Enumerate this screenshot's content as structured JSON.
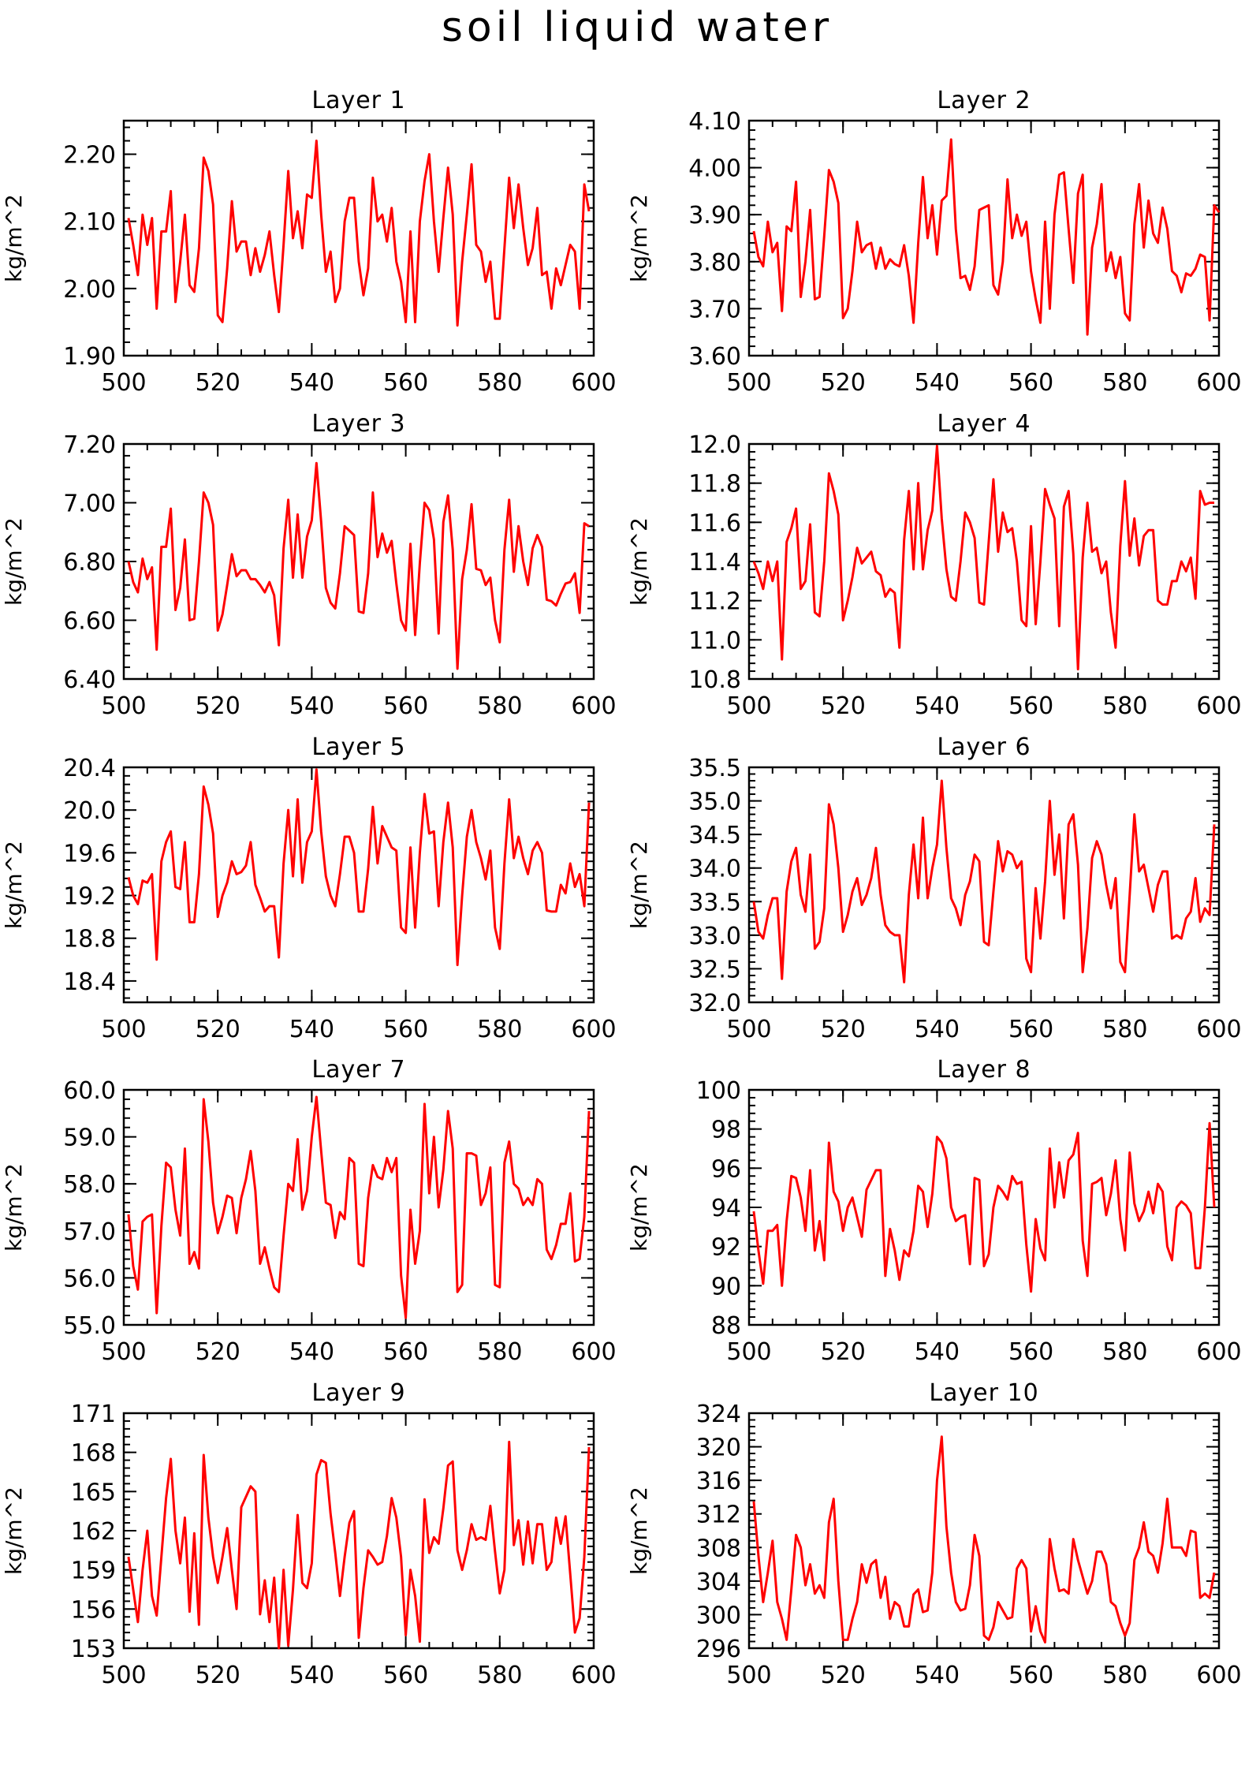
{
  "figure": {
    "title": "soil liquid water",
    "line_color": "#ff0000"
  },
  "chart_data": [
    {
      "type": "line",
      "title": "Layer 1",
      "xlabel": "",
      "ylabel": "kg/m^2",
      "xlim": [
        500,
        600
      ],
      "ylim": [
        1.9,
        2.25
      ],
      "xticks": [
        "500",
        "520",
        "540",
        "560",
        "580",
        "600"
      ],
      "yticks": [
        "1.90",
        "2.00",
        "2.10",
        "2.20"
      ],
      "x0": 501,
      "dx": 1,
      "values": [
        2.105,
        2.065,
        2.02,
        2.11,
        2.065,
        2.105,
        1.97,
        2.085,
        2.085,
        2.145,
        1.98,
        2.04,
        2.11,
        2.005,
        1.995,
        2.06,
        2.195,
        2.175,
        2.125,
        1.96,
        1.95,
        2.03,
        2.13,
        2.055,
        2.07,
        2.07,
        2.02,
        2.06,
        2.025,
        2.05,
        2.085,
        2.02,
        1.965,
        2.065,
        2.175,
        2.075,
        2.115,
        2.06,
        2.14,
        2.135,
        2.22,
        2.11,
        2.025,
        2.055,
        1.98,
        2.0,
        2.1,
        2.135,
        2.135,
        2.04,
        1.99,
        2.03,
        2.165,
        2.1,
        2.11,
        2.07,
        2.12,
        2.04,
        2.01,
        1.95,
        2.085,
        1.95,
        2.1,
        2.16,
        2.2,
        2.1,
        2.025,
        2.105,
        2.18,
        2.11,
        1.945,
        2.04,
        2.11,
        2.185,
        2.065,
        2.055,
        2.01,
        2.04,
        1.955,
        1.955,
        2.06,
        2.165,
        2.09,
        2.155,
        2.09,
        2.035,
        2.06,
        2.12,
        2.02,
        2.025,
        1.97,
        2.03,
        2.005,
        2.035,
        2.065,
        2.055,
        1.97,
        2.155,
        2.115
      ]
    },
    {
      "type": "line",
      "title": "Layer 2",
      "xlabel": "",
      "ylabel": "kg/m^2",
      "xlim": [
        500,
        600
      ],
      "ylim": [
        3.6,
        4.1
      ],
      "xticks": [
        "500",
        "520",
        "540",
        "560",
        "580",
        "600"
      ],
      "yticks": [
        "3.60",
        "3.70",
        "3.80",
        "3.90",
        "4.00",
        "4.10"
      ],
      "x0": 501,
      "dx": 1,
      "values": [
        3.865,
        3.81,
        3.79,
        3.885,
        3.82,
        3.84,
        3.695,
        3.875,
        3.865,
        3.97,
        3.725,
        3.8,
        3.91,
        3.72,
        3.725,
        3.855,
        3.995,
        3.97,
        3.925,
        3.68,
        3.7,
        3.78,
        3.885,
        3.82,
        3.835,
        3.84,
        3.785,
        3.83,
        3.785,
        3.805,
        3.795,
        3.79,
        3.835,
        3.77,
        3.67,
        3.84,
        3.98,
        3.85,
        3.92,
        3.815,
        3.93,
        3.94,
        4.06,
        3.87,
        3.765,
        3.77,
        3.74,
        3.79,
        3.91,
        3.915,
        3.92,
        3.75,
        3.73,
        3.8,
        3.975,
        3.85,
        3.9,
        3.855,
        3.885,
        3.78,
        3.72,
        3.67,
        3.885,
        3.7,
        3.9,
        3.985,
        3.99,
        3.87,
        3.755,
        3.945,
        3.985,
        3.645,
        3.83,
        3.88,
        3.965,
        3.78,
        3.82,
        3.765,
        3.81,
        3.69,
        3.675,
        3.88,
        3.965,
        3.83,
        3.93,
        3.86,
        3.84,
        3.915,
        3.87,
        3.78,
        3.77,
        3.735,
        3.775,
        3.77,
        3.785,
        3.815,
        3.81,
        3.675,
        3.92,
        3.905
      ]
    },
    {
      "type": "line",
      "title": "Layer 3",
      "xlabel": "",
      "ylabel": "kg/m^2",
      "xlim": [
        500,
        600
      ],
      "ylim": [
        6.4,
        7.2
      ],
      "xticks": [
        "500",
        "520",
        "540",
        "560",
        "580",
        "600"
      ],
      "yticks": [
        "6.40",
        "6.60",
        "6.80",
        "7.00",
        "7.20"
      ],
      "x0": 501,
      "dx": 1,
      "values": [
        6.8,
        6.73,
        6.695,
        6.81,
        6.74,
        6.78,
        6.5,
        6.85,
        6.85,
        6.98,
        6.635,
        6.71,
        6.875,
        6.6,
        6.605,
        6.8,
        7.035,
        7.0,
        6.925,
        6.565,
        6.62,
        6.72,
        6.825,
        6.75,
        6.77,
        6.77,
        6.74,
        6.74,
        6.72,
        6.695,
        6.73,
        6.685,
        6.515,
        6.845,
        7.01,
        6.745,
        6.96,
        6.745,
        6.885,
        6.94,
        7.135,
        6.935,
        6.71,
        6.66,
        6.64,
        6.76,
        6.92,
        6.905,
        6.89,
        6.63,
        6.625,
        6.76,
        7.035,
        6.815,
        6.895,
        6.83,
        6.87,
        6.725,
        6.6,
        6.565,
        6.86,
        6.55,
        6.795,
        7.0,
        6.975,
        6.875,
        6.555,
        6.935,
        7.025,
        6.84,
        6.435,
        6.74,
        6.84,
        6.995,
        6.775,
        6.77,
        6.72,
        6.745,
        6.6,
        6.525,
        6.84,
        7.01,
        6.765,
        6.92,
        6.8,
        6.72,
        6.845,
        6.89,
        6.85,
        6.67,
        6.665,
        6.65,
        6.69,
        6.725,
        6.73,
        6.76,
        6.625,
        6.93,
        6.92
      ]
    },
    {
      "type": "line",
      "title": "Layer 4",
      "xlabel": "",
      "ylabel": "kg/m^2",
      "xlim": [
        500,
        600
      ],
      "ylim": [
        10.8,
        12.0
      ],
      "xticks": [
        "500",
        "520",
        "540",
        "560",
        "580",
        "600"
      ],
      "yticks": [
        "10.8",
        "11.0",
        "11.2",
        "11.4",
        "11.6",
        "11.8",
        "12.0"
      ],
      "x0": 501,
      "dx": 1,
      "values": [
        11.4,
        11.34,
        11.26,
        11.4,
        11.3,
        11.4,
        10.9,
        11.5,
        11.57,
        11.67,
        11.26,
        11.3,
        11.59,
        11.14,
        11.12,
        11.4,
        11.85,
        11.76,
        11.64,
        11.1,
        11.2,
        11.32,
        11.47,
        11.39,
        11.42,
        11.45,
        11.35,
        11.33,
        11.22,
        11.26,
        11.24,
        10.96,
        11.51,
        11.76,
        11.36,
        11.8,
        11.36,
        11.56,
        11.66,
        11.99,
        11.62,
        11.36,
        11.22,
        11.2,
        11.4,
        11.65,
        11.6,
        11.52,
        11.19,
        11.18,
        11.5,
        11.82,
        11.45,
        11.65,
        11.55,
        11.57,
        11.4,
        11.1,
        11.07,
        11.58,
        11.08,
        11.4,
        11.77,
        11.69,
        11.62,
        11.07,
        11.68,
        11.76,
        11.44,
        10.85,
        11.42,
        11.7,
        11.45,
        11.47,
        11.34,
        11.4,
        11.14,
        10.96,
        11.48,
        11.81,
        11.43,
        11.62,
        11.38,
        11.53,
        11.56,
        11.56,
        11.2,
        11.18,
        11.18,
        11.3,
        11.3,
        11.4,
        11.35,
        11.42,
        11.21,
        11.76,
        11.69,
        11.7,
        11.7
      ]
    },
    {
      "type": "line",
      "title": "Layer 5",
      "xlabel": "",
      "ylabel": "kg/m^2",
      "xlim": [
        500,
        600
      ],
      "ylim": [
        18.2,
        20.4
      ],
      "xticks": [
        "500",
        "520",
        "540",
        "560",
        "580",
        "600"
      ],
      "yticks": [
        "18.4",
        "18.8",
        "19.2",
        "19.6",
        "20.0",
        "20.4"
      ],
      "x0": 501,
      "dx": 1,
      "values": [
        19.37,
        19.2,
        19.12,
        19.34,
        19.32,
        19.4,
        18.6,
        19.52,
        19.7,
        19.8,
        19.28,
        19.26,
        19.7,
        18.95,
        18.95,
        19.4,
        20.22,
        20.05,
        19.78,
        19.0,
        19.2,
        19.32,
        19.52,
        19.4,
        19.42,
        19.48,
        19.7,
        19.3,
        19.18,
        19.05,
        19.1,
        19.1,
        18.62,
        19.5,
        20.0,
        19.38,
        20.1,
        19.32,
        19.7,
        19.8,
        20.38,
        19.8,
        19.38,
        19.2,
        19.1,
        19.4,
        19.75,
        19.75,
        19.6,
        19.05,
        19.05,
        19.45,
        20.03,
        19.5,
        19.85,
        19.75,
        19.65,
        19.62,
        18.9,
        18.85,
        19.65,
        18.9,
        19.6,
        20.15,
        19.78,
        19.8,
        19.1,
        19.7,
        20.07,
        19.65,
        18.55,
        19.2,
        19.75,
        20.0,
        19.7,
        19.55,
        19.35,
        19.62,
        18.9,
        18.7,
        19.5,
        20.1,
        19.55,
        19.75,
        19.55,
        19.4,
        19.62,
        19.7,
        19.6,
        19.06,
        19.05,
        19.05,
        19.3,
        19.22,
        19.5,
        19.28,
        19.4,
        19.1,
        20.07
      ]
    },
    {
      "type": "line",
      "title": "Layer 6",
      "xlabel": "",
      "ylabel": "kg/m^2",
      "xlim": [
        500,
        600
      ],
      "ylim": [
        32.0,
        35.5
      ],
      "xticks": [
        "500",
        "520",
        "540",
        "560",
        "580",
        "600"
      ],
      "yticks": [
        "32.0",
        "32.5",
        "33.0",
        "33.5",
        "34.0",
        "34.5",
        "35.0",
        "35.5"
      ],
      "x0": 501,
      "dx": 1,
      "values": [
        33.5,
        33.05,
        32.95,
        33.3,
        33.55,
        33.55,
        32.35,
        33.65,
        34.1,
        34.3,
        33.6,
        33.35,
        34.2,
        32.8,
        32.9,
        33.4,
        34.95,
        34.65,
        34.0,
        33.05,
        33.3,
        33.65,
        33.85,
        33.45,
        33.6,
        33.85,
        34.3,
        33.6,
        33.15,
        33.05,
        33.0,
        33.0,
        32.3,
        33.6,
        34.35,
        33.55,
        34.75,
        33.55,
        34.0,
        34.35,
        35.3,
        34.3,
        33.55,
        33.4,
        33.15,
        33.6,
        33.8,
        34.2,
        34.1,
        32.9,
        32.85,
        33.65,
        34.4,
        33.95,
        34.25,
        34.2,
        34.0,
        34.1,
        32.65,
        32.45,
        33.7,
        32.95,
        33.8,
        35.0,
        33.9,
        34.5,
        33.25,
        34.65,
        34.8,
        34.05,
        32.45,
        33.1,
        34.15,
        34.4,
        34.2,
        33.75,
        33.4,
        33.85,
        32.6,
        32.45,
        33.6,
        34.8,
        33.95,
        34.05,
        33.7,
        33.35,
        33.75,
        33.95,
        33.95,
        32.95,
        33.0,
        32.95,
        33.25,
        33.35,
        33.85,
        33.2,
        33.4,
        33.3,
        34.65
      ]
    },
    {
      "type": "line",
      "title": "Layer 7",
      "xlabel": "",
      "ylabel": "kg/m^2",
      "xlim": [
        500,
        600
      ],
      "ylim": [
        55.0,
        60.0
      ],
      "xticks": [
        "500",
        "520",
        "540",
        "560",
        "580",
        "600"
      ],
      "yticks": [
        "55.0",
        "56.0",
        "57.0",
        "58.0",
        "59.0",
        "60.0"
      ],
      "x0": 501,
      "dx": 1,
      "values": [
        57.35,
        56.25,
        55.75,
        57.2,
        57.3,
        57.35,
        55.25,
        57.1,
        58.45,
        58.35,
        57.45,
        56.9,
        58.75,
        56.3,
        56.55,
        56.2,
        59.8,
        58.9,
        57.6,
        56.95,
        57.3,
        57.75,
        57.7,
        56.95,
        57.7,
        58.1,
        58.7,
        57.85,
        56.3,
        56.65,
        56.2,
        55.8,
        55.7,
        56.9,
        58.0,
        57.85,
        58.95,
        57.45,
        57.85,
        59.0,
        59.85,
        58.7,
        57.6,
        57.55,
        56.85,
        57.4,
        57.25,
        58.55,
        58.45,
        56.3,
        56.25,
        57.7,
        58.4,
        58.15,
        58.1,
        58.55,
        58.25,
        58.55,
        56.05,
        55.15,
        57.45,
        56.3,
        57.0,
        59.7,
        57.8,
        59.0,
        57.5,
        58.3,
        59.55,
        58.75,
        55.7,
        55.85,
        58.65,
        58.65,
        58.6,
        57.55,
        57.8,
        58.35,
        55.85,
        55.8,
        58.45,
        58.9,
        58.0,
        57.9,
        57.55,
        57.7,
        57.55,
        58.1,
        58.0,
        56.6,
        56.4,
        56.7,
        57.15,
        57.15,
        57.8,
        56.35,
        56.4,
        57.3,
        59.55
      ]
    },
    {
      "type": "line",
      "title": "Layer 8",
      "xlabel": "",
      "ylabel": "kg/m^2",
      "xlim": [
        500,
        600
      ],
      "ylim": [
        88,
        100
      ],
      "xticks": [
        "500",
        "520",
        "540",
        "560",
        "580",
        "600"
      ],
      "yticks": [
        "88",
        "90",
        "92",
        "94",
        "96",
        "98",
        "100"
      ],
      "x0": 501,
      "dx": 1,
      "values": [
        93.8,
        91.8,
        90.1,
        92.8,
        92.8,
        93.1,
        90.0,
        93.3,
        95.6,
        95.5,
        94.5,
        92.8,
        95.9,
        91.8,
        93.3,
        91.3,
        97.3,
        94.8,
        94.3,
        92.8,
        94.0,
        94.5,
        93.5,
        92.5,
        94.9,
        95.4,
        95.9,
        95.9,
        90.5,
        92.9,
        91.8,
        90.3,
        91.8,
        91.5,
        92.8,
        95.1,
        94.8,
        93.0,
        94.7,
        97.6,
        97.3,
        96.5,
        94.0,
        93.3,
        93.5,
        93.6,
        91.1,
        95.5,
        95.4,
        91.0,
        91.6,
        94.0,
        95.1,
        94.8,
        94.4,
        95.6,
        95.2,
        95.3,
        92.1,
        89.7,
        93.4,
        91.9,
        91.3,
        97.0,
        94.0,
        96.3,
        94.5,
        96.4,
        96.7,
        97.8,
        92.3,
        90.5,
        95.2,
        95.3,
        95.5,
        93.6,
        94.7,
        96.4,
        93.4,
        91.8,
        96.8,
        94.2,
        93.3,
        93.8,
        94.8,
        93.7,
        95.2,
        94.8,
        92.0,
        91.3,
        94.0,
        94.3,
        94.1,
        93.7,
        90.9,
        90.9,
        94.0,
        98.3,
        94.0
      ]
    },
    {
      "type": "line",
      "title": "Layer 9",
      "xlabel": "",
      "ylabel": "kg/m^2",
      "xlim": [
        500,
        600
      ],
      "ylim": [
        153,
        171
      ],
      "xticks": [
        "500",
        "520",
        "540",
        "560",
        "580",
        "600"
      ],
      "yticks": [
        "153",
        "156",
        "159",
        "162",
        "165",
        "168",
        "171"
      ],
      "x0": 501,
      "dx": 1,
      "values": [
        160.0,
        157.5,
        155.0,
        159.0,
        162.0,
        157.0,
        155.5,
        160.0,
        164.5,
        167.5,
        162.0,
        159.5,
        163.0,
        155.8,
        161.8,
        154.8,
        167.8,
        163.0,
        160.0,
        158.0,
        160.0,
        162.2,
        159.0,
        156.0,
        163.8,
        164.6,
        165.4,
        165.0,
        155.6,
        158.2,
        155.0,
        158.4,
        153.0,
        159.0,
        153.2,
        157.5,
        163.2,
        158.0,
        157.6,
        159.5,
        166.3,
        167.4,
        167.2,
        163.3,
        160.3,
        157.0,
        160.0,
        162.6,
        163.5,
        153.8,
        157.6,
        160.5,
        160.0,
        159.4,
        159.6,
        161.6,
        164.5,
        163.0,
        160.0,
        154.0,
        159.0,
        157.0,
        153.5,
        164.4,
        160.3,
        161.5,
        161.0,
        163.7,
        167.0,
        167.3,
        160.5,
        159.0,
        160.5,
        162.5,
        161.3,
        161.5,
        161.3,
        163.9,
        160.4,
        157.2,
        159.0,
        168.8,
        160.9,
        162.8,
        159.4,
        162.7,
        159.5,
        162.5,
        162.5,
        159.0,
        159.6,
        163.0,
        161.0,
        163.1,
        158.7,
        154.2,
        155.3,
        160.0,
        168.4
      ]
    },
    {
      "type": "line",
      "title": "Layer 10",
      "xlabel": "",
      "ylabel": "kg/m^2",
      "xlim": [
        500,
        600
      ],
      "ylim": [
        296,
        324
      ],
      "xticks": [
        "500",
        "520",
        "540",
        "560",
        "580",
        "600"
      ],
      "yticks": [
        "296",
        "300",
        "304",
        "308",
        "312",
        "316",
        "320",
        "324"
      ],
      "x0": 501,
      "dx": 1,
      "values": [
        313.5,
        307.0,
        301.5,
        305.0,
        308.8,
        301.5,
        299.5,
        297.0,
        303.0,
        309.5,
        308.0,
        303.5,
        306.0,
        302.5,
        303.5,
        302.0,
        311.0,
        313.8,
        304.0,
        297.0,
        297.0,
        299.5,
        301.5,
        306.0,
        303.8,
        306.0,
        306.5,
        302.0,
        304.5,
        299.5,
        301.5,
        301.0,
        298.6,
        298.6,
        302.4,
        303.0,
        300.3,
        300.5,
        305.0,
        316.0,
        321.2,
        310.5,
        305.0,
        301.5,
        300.5,
        300.7,
        303.5,
        309.5,
        307.0,
        297.5,
        297.0,
        298.5,
        301.5,
        300.5,
        299.5,
        299.7,
        305.5,
        306.5,
        305.5,
        298.0,
        301.0,
        298.0,
        296.7,
        309.0,
        305.5,
        302.8,
        303.0,
        302.5,
        309.0,
        306.5,
        304.5,
        302.5,
        304.0,
        307.5,
        307.5,
        306.0,
        301.5,
        301.0,
        299.0,
        297.5,
        299.0,
        306.5,
        308.0,
        311.0,
        307.5,
        307.0,
        305.0,
        308.5,
        313.8,
        308.0,
        308.0,
        308.0,
        307.0,
        310.0,
        309.8,
        302.0,
        302.5,
        302.0,
        305.0
      ]
    }
  ]
}
